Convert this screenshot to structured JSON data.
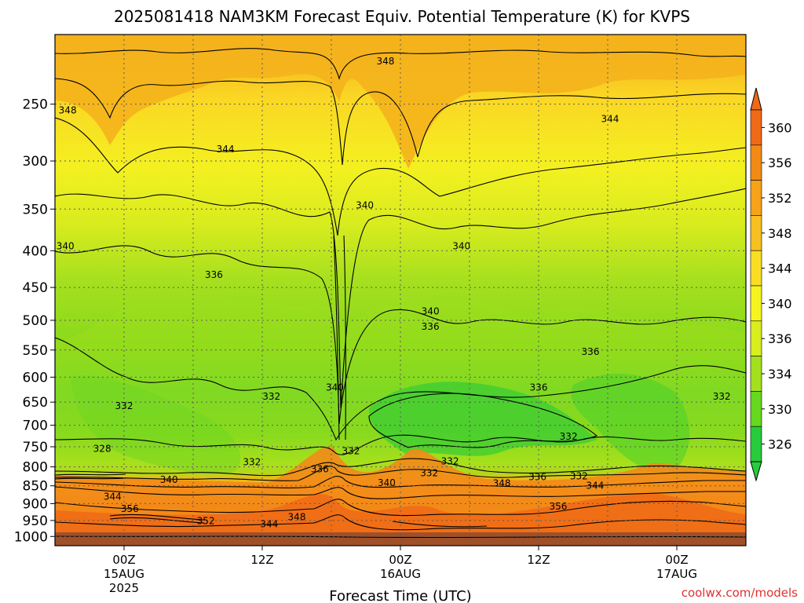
{
  "chart_data": {
    "type": "heatmap",
    "title": "2025081418 NAM3KM Forecast Equiv. Potential Temperature (K) for KVPS",
    "xlabel": "Forecast Time (UTC)",
    "ylabel": "",
    "y_scale": "log-pressure",
    "y_axis_reversed": true,
    "ylim": [
      1030,
      200
    ],
    "y_ticks": [
      250,
      300,
      350,
      400,
      450,
      500,
      550,
      600,
      650,
      700,
      750,
      800,
      850,
      900,
      950,
      1000
    ],
    "x_ticks": [
      {
        "top": "00Z",
        "middle": "15AUG",
        "bottom": "2025"
      },
      {
        "top": "12Z",
        "middle": "",
        "bottom": ""
      },
      {
        "top": "00Z",
        "middle": "16AUG",
        "bottom": ""
      },
      {
        "top": "12Z",
        "middle": "",
        "bottom": ""
      },
      {
        "top": "00Z",
        "middle": "17AUG",
        "bottom": ""
      }
    ],
    "grid": true,
    "colorbar": {
      "values": [
        360,
        356,
        352,
        348,
        344,
        340,
        336,
        334,
        330,
        326
      ],
      "colors": [
        "#ee6a18",
        "#f28a16",
        "#f6a31a",
        "#f8c020",
        "#fade24",
        "#f6f41e",
        "#d8ee1e",
        "#a4e01e",
        "#66d81e",
        "#26cc3c"
      ]
    },
    "profile": [
      {
        "pressure": 200,
        "theta_e": 349
      },
      {
        "pressure": 250,
        "theta_e": 347
      },
      {
        "pressure": 300,
        "theta_e": 344
      },
      {
        "pressure": 350,
        "theta_e": 341
      },
      {
        "pressure": 400,
        "theta_e": 339
      },
      {
        "pressure": 450,
        "theta_e": 337
      },
      {
        "pressure": 500,
        "theta_e": 335
      },
      {
        "pressure": 550,
        "theta_e": 334
      },
      {
        "pressure": 600,
        "theta_e": 333
      },
      {
        "pressure": 650,
        "theta_e": 332
      },
      {
        "pressure": 700,
        "theta_e": 331
      },
      {
        "pressure": 750,
        "theta_e": 332
      },
      {
        "pressure": 800,
        "theta_e": 333
      },
      {
        "pressure": 850,
        "theta_e": 342
      },
      {
        "pressure": 900,
        "theta_e": 348
      },
      {
        "pressure": 950,
        "theta_e": 352
      },
      {
        "pressure": 1000,
        "theta_e": 356
      }
    ],
    "contour_labels": [
      {
        "value": "348",
        "x": 22.7,
        "p": 218
      },
      {
        "value": "348",
        "x": -4.9,
        "p": 255
      },
      {
        "value": "344",
        "x": 42.2,
        "p": 262
      },
      {
        "value": "344",
        "x": 8.8,
        "p": 289
      },
      {
        "value": "340",
        "x": 20.9,
        "p": 346
      },
      {
        "value": "340",
        "x": 62.2,
        "p": 346
      },
      {
        "value": "340",
        "x": -5.1,
        "p": 394
      },
      {
        "value": "340",
        "x": 29.3,
        "p": 394
      },
      {
        "value": "336",
        "x": -6.8,
        "p": 426
      },
      {
        "value": "336",
        "x": 7.8,
        "p": 432
      },
      {
        "value": "340",
        "x": 26.6,
        "p": 486
      },
      {
        "value": "336",
        "x": 26.6,
        "p": 510
      },
      {
        "value": "336",
        "x": 40.5,
        "p": 553
      },
      {
        "value": "340",
        "x": 18.3,
        "p": 620
      },
      {
        "value": "336",
        "x": 36.0,
        "p": 620
      },
      {
        "value": "332",
        "x": 12.8,
        "p": 638
      },
      {
        "value": "332",
        "x": 0.0,
        "p": 658
      },
      {
        "value": "332",
        "x": 51.9,
        "p": 638
      },
      {
        "value": "332",
        "x": 38.6,
        "p": 726
      },
      {
        "value": "332",
        "x": 19.7,
        "p": 760
      },
      {
        "value": "332",
        "x": 11.1,
        "p": 788
      },
      {
        "value": "328",
        "x": -1.9,
        "p": 755
      },
      {
        "value": "332",
        "x": 28.3,
        "p": 786
      },
      {
        "value": "336",
        "x": 17.0,
        "p": 806
      },
      {
        "value": "332",
        "x": 26.5,
        "p": 816
      },
      {
        "value": "336",
        "x": 35.9,
        "p": 826
      },
      {
        "value": "332",
        "x": 39.5,
        "p": 824
      },
      {
        "value": "344",
        "x": 40.9,
        "p": 850
      },
      {
        "value": "340",
        "x": -8.9,
        "p": 830
      },
      {
        "value": "348",
        "x": 32.8,
        "p": 843
      },
      {
        "value": "340",
        "x": 3.9,
        "p": 834
      },
      {
        "value": "340",
        "x": 22.8,
        "p": 842
      },
      {
        "value": "336",
        "x": -7.6,
        "p": 840
      },
      {
        "value": "348",
        "x": -12.6,
        "p": 875
      },
      {
        "value": "356",
        "x": 37.7,
        "p": 908
      },
      {
        "value": "352",
        "x": 7.1,
        "p": 952
      },
      {
        "value": "344",
        "x": 12.6,
        "p": 961
      },
      {
        "value": "348",
        "x": 15.0,
        "p": 940
      },
      {
        "value": "352",
        "x": -6.9,
        "p": 920
      },
      {
        "value": "356",
        "x": 0.5,
        "p": 915
      },
      {
        "value": "344",
        "x": -1.0,
        "p": 880
      }
    ],
    "bottom_band_color": "#a05028"
  },
  "watermark": "coolwx.com/models",
  "colors": {
    "contour": "#000000",
    "grid": "#5a5a5a",
    "watermark": "#e03030"
  }
}
